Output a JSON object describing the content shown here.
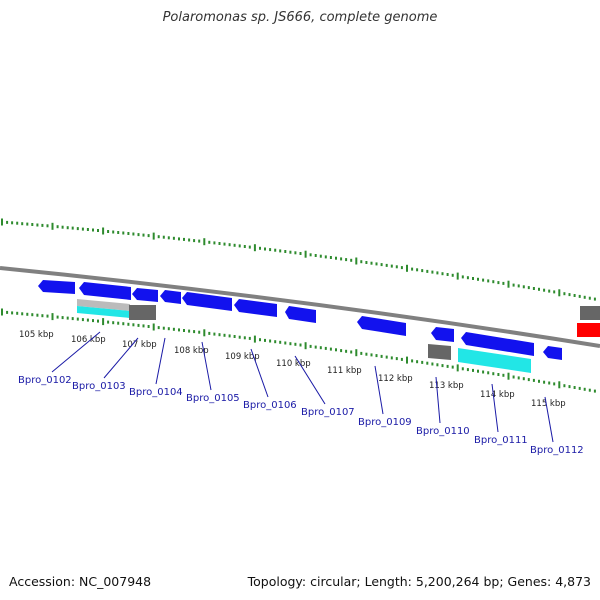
{
  "title": "Polaromonas sp. JS666, complete genome",
  "footer": {
    "accession": "Accession: NC_007948",
    "summary": "Topology: circular; Length: 5,200,264 bp; Genes: 4,873"
  },
  "colors": {
    "tick": "#2e8b2e",
    "backbone": "#808080",
    "cds": "#1212ee",
    "rna": "#ff0000",
    "pseudo": "#666666",
    "light_gray": "#bbbbbb",
    "cyan": "#22e6e6",
    "label": "#1a1aa6"
  },
  "kbp_labels": [
    "105 kbp",
    "106 kbp",
    "107 kbp",
    "108 kbp",
    "109 kbp",
    "110 kbp",
    "111 kbp",
    "112 kbp",
    "113 kbp",
    "114 kbp",
    "115 kbp"
  ],
  "gene_labels": [
    "Bpro_0102",
    "Bpro_0103",
    "Bpro_0104",
    "Bpro_0105",
    "Bpro_0106",
    "Bpro_0107",
    "Bpro_0109",
    "Bpro_0110",
    "Bpro_0111",
    "Bpro_0112"
  ]
}
